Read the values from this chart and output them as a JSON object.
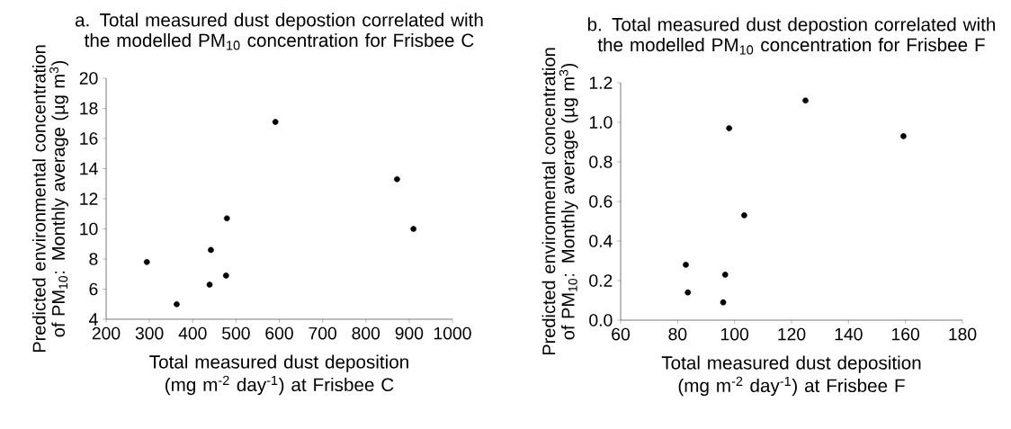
{
  "chart_data": [
    {
      "type": "scatter",
      "title": "a. Total measured dust depostion correlated with the modelled PM$_{10}$ concentration for Frisbee C",
      "xlabel": "Total measured dust deposition (mg m$^{-2}$ day$^{-1}$) at Frisbee C",
      "ylabel": "Predicted environmental concentration of PM$_{10}$: Monthly average (µg m$^{3}$)",
      "color": "#000000",
      "x": [
        294,
        363,
        439,
        442,
        477,
        479,
        591,
        872,
        910
      ],
      "values": [
        7.8,
        5.0,
        6.3,
        8.6,
        6.9,
        10.7,
        17.1,
        13.3,
        10.0
      ],
      "xlim": [
        200,
        1000
      ],
      "ylim": [
        4,
        20
      ],
      "xticks": [
        200,
        300,
        400,
        500,
        600,
        700,
        800,
        900,
        1000
      ],
      "yticks": [
        4,
        6,
        8,
        10,
        12,
        14,
        16,
        18,
        20
      ]
    },
    {
      "type": "scatter",
      "title": "b. Total measured dust depostion correlated with the modelled PM$_{10}$ concentration for Frisbee F",
      "xlabel": "Total measured dust deposition (mg m$^{-2}$ day$^{-1}$) at Frisbee F",
      "ylabel": "Predicted environmental concentration of PM$_{10}$: Monthly average (µg m$^{3}$)",
      "color": "#000000",
      "x": [
        82.9,
        83.6,
        96.0,
        96.7,
        98.1,
        103.4,
        124.9,
        159.3
      ],
      "values": [
        0.28,
        0.14,
        0.09,
        0.23,
        0.97,
        0.53,
        1.11,
        0.93
      ],
      "xlim": [
        60,
        180
      ],
      "ylim": [
        0,
        1.2
      ],
      "xticks": [
        60,
        80,
        100,
        120,
        140,
        160,
        180
      ],
      "yticks": [
        {
          "value": 0,
          "label": "0.0"
        },
        0.2,
        0.4,
        0.6,
        0.8,
        {
          "value": 1,
          "label": "1.0"
        },
        1.2
      ]
    }
  ]
}
